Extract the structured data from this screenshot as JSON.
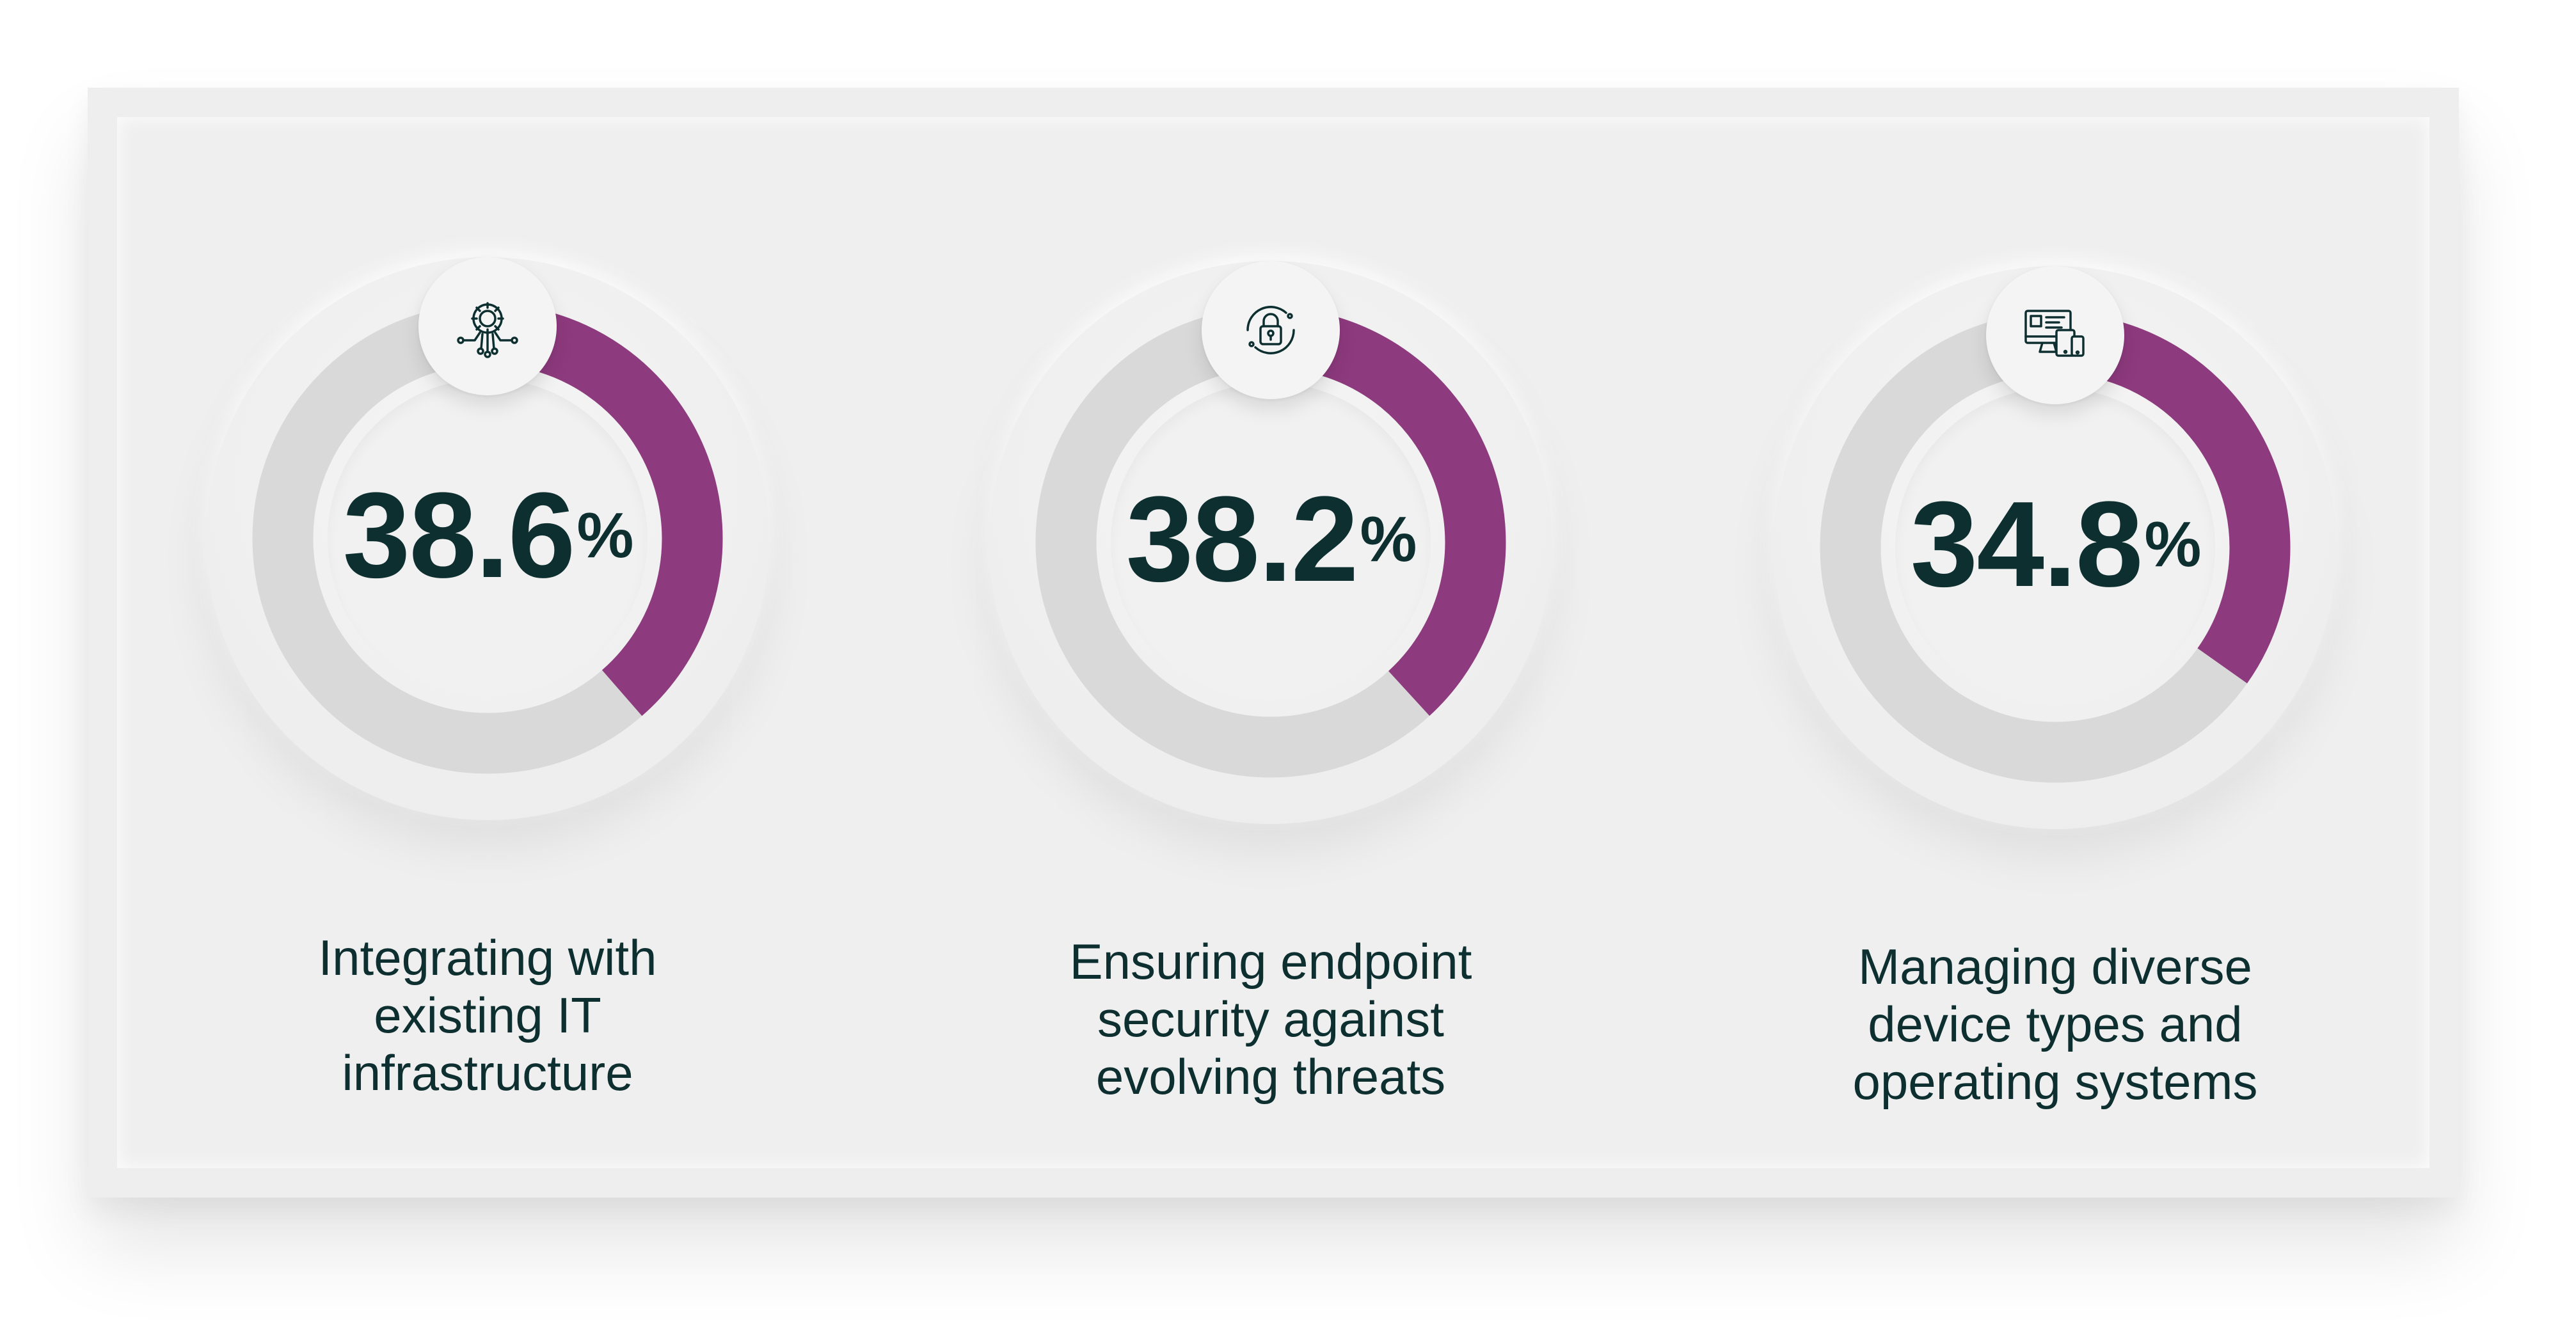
{
  "colors": {
    "accent": "#8e3a7e",
    "track": "#dad9d9",
    "text": "#0e2f30"
  },
  "chart_data": [
    {
      "type": "pie",
      "subtype": "donut",
      "value": 38.6,
      "unit": "%",
      "label_lines": [
        "Integrating with",
        "existing IT",
        "infrastructure"
      ],
      "icon": "gear-circuit-icon"
    },
    {
      "type": "pie",
      "subtype": "donut",
      "value": 38.2,
      "unit": "%",
      "label_lines": [
        "Ensuring endpoint",
        "security against",
        "evolving threats"
      ],
      "icon": "padlock-icon"
    },
    {
      "type": "pie",
      "subtype": "donut",
      "value": 34.8,
      "unit": "%",
      "label_lines": [
        "Managing diverse",
        "device types and",
        "operating systems"
      ],
      "icon": "devices-icon"
    }
  ],
  "display": {
    "values": [
      "38.6",
      "38.2",
      "34.8"
    ]
  }
}
